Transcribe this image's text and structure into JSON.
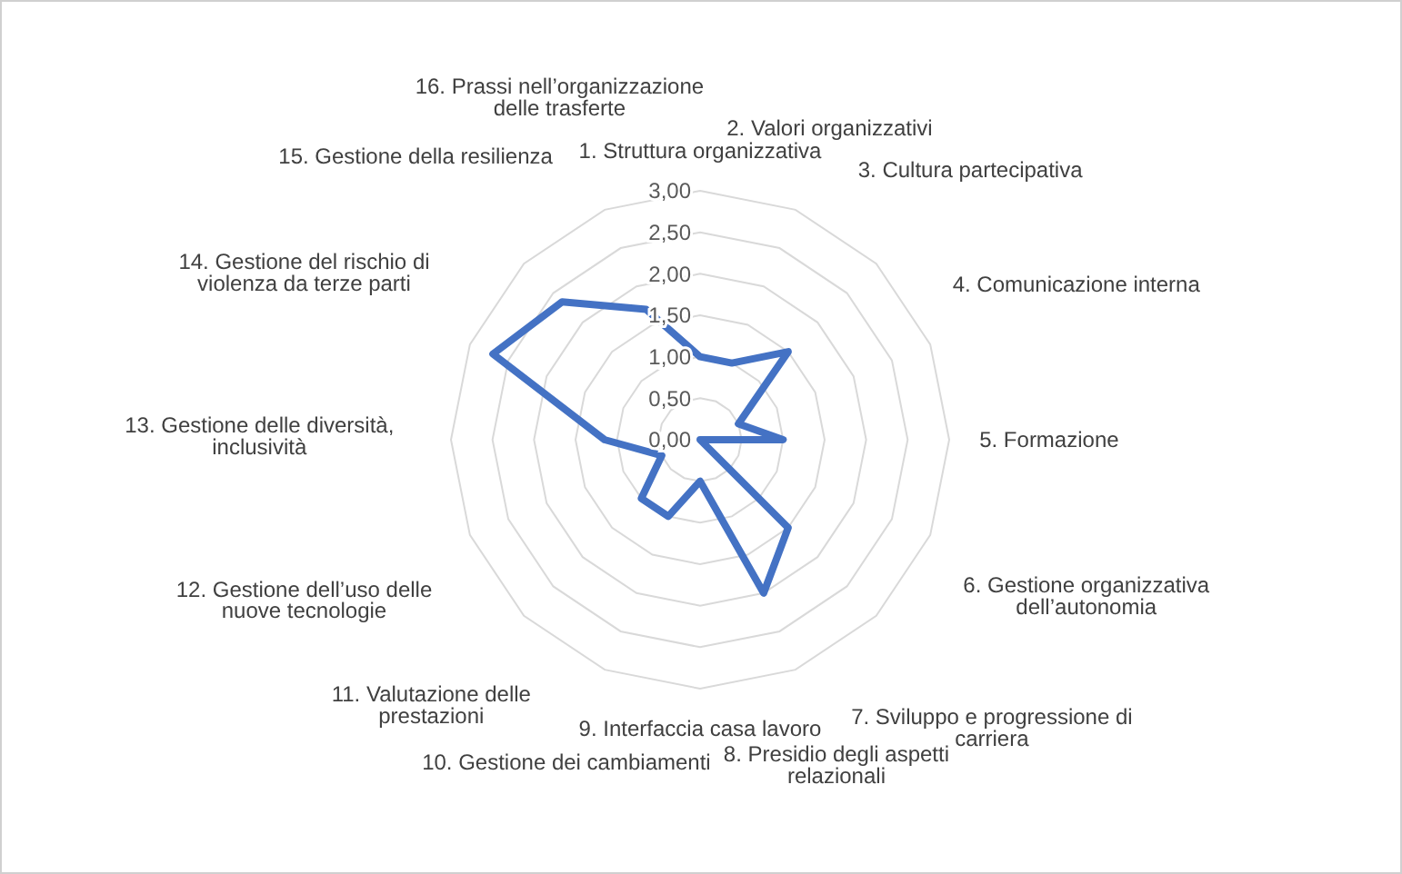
{
  "chart_data": {
    "type": "radar",
    "categories": [
      "1. Struttura organizzativa",
      "2. Valori organizzativi",
      "3. Cultura partecipativa",
      "4. Comunicazione interna",
      "5. Formazione",
      "6. Gestione organizzativa dell’autonomia",
      "7. Sviluppo e progressione di carriera",
      "8. Presidio degli aspetti relazionali",
      "9. Interfaccia casa lavoro",
      "10. Gestione dei cambiamenti",
      "11. Valutazione delle prestazioni",
      "12. Gestione dell’uso delle nuove tecnologie",
      "13. Gestione delle diversità, inclusività",
      "14. Gestione del rischio di violenza da terze parti",
      "15. Gestione della resilienza",
      "16. Prassi nell’organizzazione delle trasferte"
    ],
    "series": [
      {
        "color": "#4472c4",
        "values": [
          1.0,
          1.0,
          1.5,
          0.5,
          1.0,
          0,
          1.5,
          2.0,
          0.5,
          1.0,
          1.0,
          0.5,
          1.15,
          2.7,
          2.35,
          1.7
        ]
      }
    ],
    "ylim": [
      0,
      3
    ],
    "yticks": [
      {
        "value": 0,
        "label": "0,00"
      },
      {
        "value": 0.5,
        "label": "0,50"
      },
      {
        "value": 1,
        "label": "1,00"
      },
      {
        "value": 1.5,
        "label": "1,50"
      },
      {
        "value": 2,
        "label": "2,00"
      },
      {
        "value": 2.5,
        "label": "2,50"
      },
      {
        "value": 3,
        "label": "3,00"
      }
    ],
    "grid": true,
    "marker": "none",
    "line_style": "solid"
  }
}
